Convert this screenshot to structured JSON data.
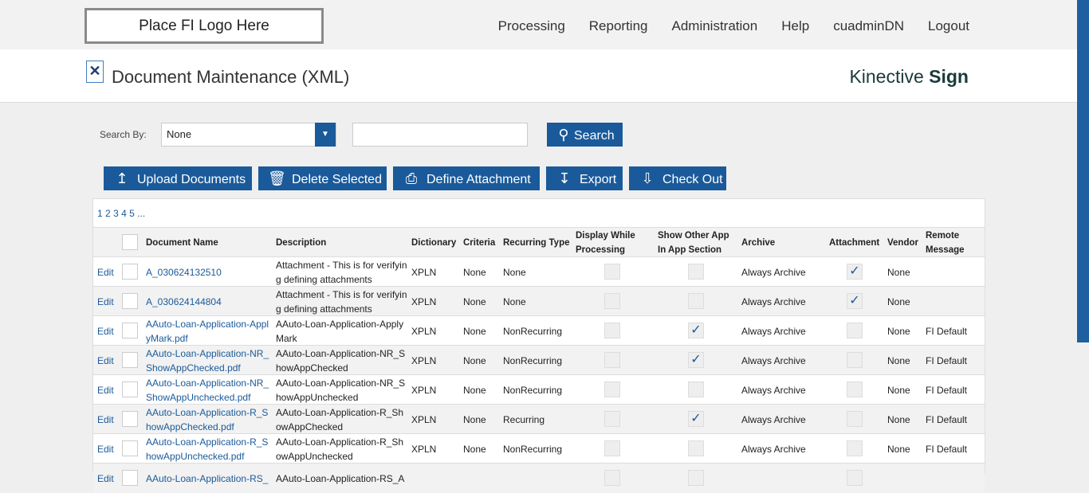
{
  "logo": "Place FI Logo Here",
  "nav": [
    "Processing",
    "Reporting",
    "Administration",
    "Help",
    "cuadminDN",
    "Logout"
  ],
  "page_title": "Document Maintenance (XML)",
  "brand": {
    "light": "Kinective ",
    "bold": "Sign"
  },
  "search": {
    "label": "Search By:",
    "selected": "None",
    "value": "",
    "button": "Search"
  },
  "toolbar": [
    "Upload Documents",
    "Delete Selected",
    "Define Attachment",
    "Export",
    "Check Out"
  ],
  "pager": [
    "1",
    "2",
    "3",
    "4",
    "5",
    "..."
  ],
  "columns": [
    "Document Name",
    "Description",
    "Dictionary",
    "Criteria",
    "Recurring Type",
    "Display While Processing",
    "Show Other App In App Section",
    "Archive",
    "Attachment",
    "Vendor",
    "Remote Message"
  ],
  "edit_label": "Edit",
  "rows": [
    {
      "name": "A_030624132510",
      "desc": "Attachment - This is for verifying defining attachments",
      "dict": "XPLN",
      "criteria": "None",
      "recurring": "None",
      "display": false,
      "show_other": false,
      "archive": "Always Archive",
      "attachment": true,
      "vendor": "None",
      "remote": ""
    },
    {
      "name": "A_030624144804",
      "desc": "Attachment - This is for verifying defining attachments",
      "dict": "XPLN",
      "criteria": "None",
      "recurring": "None",
      "display": false,
      "show_other": false,
      "archive": "Always Archive",
      "attachment": true,
      "vendor": "None",
      "remote": ""
    },
    {
      "name": "AAuto-Loan-Application-ApplyMark.pdf",
      "desc": "AAuto-Loan-Application-ApplyMark",
      "dict": "XPLN",
      "criteria": "None",
      "recurring": "NonRecurring",
      "display": false,
      "show_other": true,
      "archive": "Always Archive",
      "attachment": false,
      "vendor": "None",
      "remote": "FI Default"
    },
    {
      "name": "AAuto-Loan-Application-NR_ShowAppChecked.pdf",
      "desc": "AAuto-Loan-Application-NR_ShowAppChecked",
      "dict": "XPLN",
      "criteria": "None",
      "recurring": "NonRecurring",
      "display": false,
      "show_other": true,
      "archive": "Always Archive",
      "attachment": false,
      "vendor": "None",
      "remote": "FI Default"
    },
    {
      "name": "AAuto-Loan-Application-NR_ShowAppUnchecked.pdf",
      "desc": "AAuto-Loan-Application-NR_ShowAppUnchecked",
      "dict": "XPLN",
      "criteria": "None",
      "recurring": "NonRecurring",
      "display": false,
      "show_other": false,
      "archive": "Always Archive",
      "attachment": false,
      "vendor": "None",
      "remote": "FI Default"
    },
    {
      "name": "AAuto-Loan-Application-R_ShowAppChecked.pdf",
      "desc": "AAuto-Loan-Application-R_ShowAppChecked",
      "dict": "XPLN",
      "criteria": "None",
      "recurring": "Recurring",
      "display": false,
      "show_other": true,
      "archive": "Always Archive",
      "attachment": false,
      "vendor": "None",
      "remote": "FI Default"
    },
    {
      "name": "AAuto-Loan-Application-R_ShowAppUnchecked.pdf",
      "desc": "AAuto-Loan-Application-R_ShowAppUnchecked",
      "dict": "XPLN",
      "criteria": "None",
      "recurring": "NonRecurring",
      "display": false,
      "show_other": false,
      "archive": "Always Archive",
      "attachment": false,
      "vendor": "None",
      "remote": "FI Default"
    },
    {
      "name": "AAuto-Loan-Application-RS_",
      "desc": "AAuto-Loan-Application-RS_A",
      "dict": "",
      "criteria": "",
      "recurring": "",
      "display": false,
      "show_other": false,
      "archive": "",
      "attachment": false,
      "vendor": "",
      "remote": ""
    }
  ]
}
